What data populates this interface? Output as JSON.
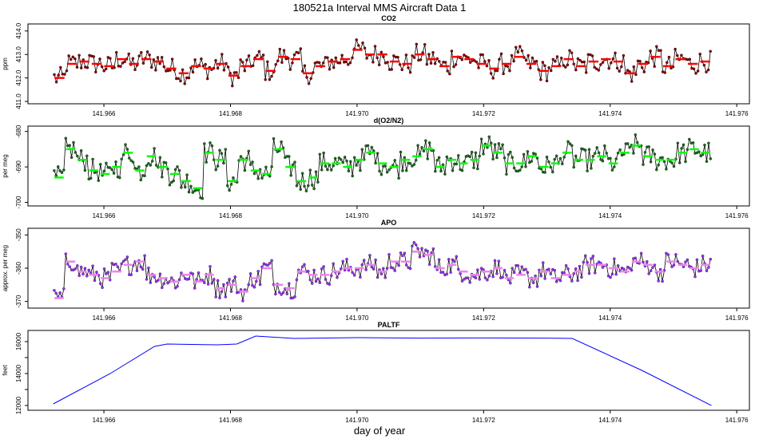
{
  "figure": {
    "title": "180521a   Interval MMS Aircraft Data 1",
    "xlabel": "day of year"
  },
  "colors": {
    "frame": "#000000",
    "raw_line": "#000000",
    "co2_point": "#8b0000",
    "co2_mean": "#ff0000",
    "o2_point": "#1a6e1a",
    "o2_mean": "#00ff00",
    "apo_point": "#9b30ff",
    "apo_mean": "#ee82ee",
    "paltf_line": "#0000ff"
  },
  "chart_data": [
    {
      "type": "line",
      "id": "co2",
      "title": "CO2",
      "ylabel": "ppm",
      "xlim": [
        141.9648,
        141.9762
      ],
      "ylim": [
        410.9,
        414.3
      ],
      "xticks": [
        141.966,
        141.968,
        141.97,
        141.972,
        141.974,
        141.976
      ],
      "xtick_labels": [
        "141.966",
        "141.968",
        "141.970",
        "141.972",
        "141.974",
        "141.976"
      ],
      "yticks": [
        411.0,
        412.0,
        413.0,
        414.0
      ],
      "ytick_labels": [
        "411.0",
        "412.0",
        "413.0",
        "414.0"
      ],
      "x_start": 141.9652,
      "x_end": 141.9756,
      "approx_mean_levels": [
        412.0,
        412.6,
        412.7,
        412.6,
        412.5,
        412.8,
        412.6,
        412.8,
        412.7,
        412.4,
        412.2,
        412.5,
        412.4,
        412.6,
        412.1,
        412.5,
        412.8,
        412.3,
        412.9,
        412.8,
        412.2,
        412.5,
        412.7,
        412.8,
        413.2,
        413.0,
        413.0,
        412.7,
        412.6,
        413.0,
        412.8,
        412.5,
        412.9,
        412.8,
        412.6,
        412.4,
        412.6,
        412.9,
        412.6,
        412.3,
        412.5,
        412.8,
        412.5,
        412.7,
        412.8,
        412.7,
        412.2,
        412.6,
        412.9,
        412.5,
        412.8,
        412.6,
        412.7
      ],
      "series_description": "Noisy CO2 interval measurements with red interval-mean segments"
    },
    {
      "type": "line",
      "id": "o2",
      "title": "d(O2/N2)",
      "ylabel": "per meg",
      "xlim": [
        141.9648,
        141.9762
      ],
      "ylim": [
        -701,
        -678.5
      ],
      "xticks": [
        141.966,
        141.968,
        141.97,
        141.972,
        141.974,
        141.976
      ],
      "xtick_labels": [
        "141.966",
        "141.968",
        "141.970",
        "141.972",
        "141.974",
        "141.976"
      ],
      "yticks": [
        -700,
        -690,
        -680
      ],
      "ytick_labels": [
        "-700",
        "-690",
        "-680"
      ],
      "x_start": 141.9652,
      "x_end": 141.9756,
      "approx_mean_levels": [
        -693,
        -685,
        -688,
        -691,
        -692,
        -690,
        -686,
        -691,
        -687,
        -690,
        -692,
        -694,
        -696,
        -686,
        -688,
        -694,
        -688,
        -691,
        -692,
        -685,
        -690,
        -694,
        -693,
        -689,
        -689,
        -690,
        -688,
        -686,
        -689,
        -690,
        -688,
        -687,
        -685,
        -690,
        -688,
        -689,
        -688,
        -684,
        -686,
        -689,
        -689,
        -687,
        -690,
        -689,
        -686,
        -688,
        -688,
        -687,
        -689,
        -686,
        -684,
        -687,
        -688,
        -688,
        -686,
        -685,
        -686
      ],
      "series_description": "Noisy O2/N2 interval measurements with green interval-mean segments"
    },
    {
      "type": "line",
      "id": "apo",
      "title": "APO",
      "ylabel": "approx. per meg",
      "xlim": [
        141.9648,
        141.9762
      ],
      "ylim": [
        -372,
        -348
      ],
      "xticks": [
        141.966,
        141.968,
        141.97,
        141.972,
        141.974,
        141.976
      ],
      "xtick_labels": [
        "141.966",
        "141.968",
        "141.970",
        "141.972",
        "141.974",
        "141.976"
      ],
      "yticks": [
        -370,
        -360,
        -350
      ],
      "ytick_labels": [
        "-370",
        "-360",
        "-350"
      ],
      "x_start": 141.9652,
      "x_end": 141.9756,
      "approx_mean_levels": [
        -369,
        -358,
        -361,
        -362,
        -363,
        -361,
        -359,
        -358,
        -362,
        -363,
        -364,
        -362,
        -364,
        -362,
        -366,
        -365,
        -367,
        -363,
        -360,
        -365,
        -366,
        -361,
        -362,
        -362,
        -361,
        -360,
        -360,
        -359,
        -361,
        -358,
        -358,
        -355,
        -356,
        -360,
        -359,
        -361,
        -362,
        -361,
        -360,
        -363,
        -362,
        -363,
        -361,
        -363,
        -362,
        -361,
        -359,
        -359,
        -360,
        -361,
        -358,
        -359,
        -361,
        -358,
        -359,
        -360,
        -359
      ],
      "series_description": "Noisy APO interval measurements with violet interval-mean segments"
    },
    {
      "type": "line",
      "id": "paltf",
      "title": "PALTF",
      "ylabel": "feet",
      "xlim": [
        141.9648,
        141.9762
      ],
      "ylim": [
        11700,
        16700
      ],
      "xticks": [
        141.966,
        141.968,
        141.97,
        141.972,
        141.974,
        141.976
      ],
      "xtick_labels": [
        "141.966",
        "141.968",
        "141.970",
        "141.972",
        "141.974",
        "141.976"
      ],
      "yticks": [
        12000,
        13000,
        14000,
        15000,
        16000
      ],
      "ytick_labels": [
        "12000",
        "",
        "14000",
        "",
        "16000"
      ],
      "x": [
        141.9652,
        141.9661,
        141.9668,
        141.967,
        141.9678,
        141.9681,
        141.9684,
        141.969,
        141.97,
        141.971,
        141.972,
        141.973,
        141.9734,
        141.9745,
        141.9756
      ],
      "y": [
        12100,
        14000,
        15700,
        15850,
        15800,
        15850,
        16350,
        16200,
        16250,
        16220,
        16230,
        16220,
        16200,
        14200,
        12000
      ]
    }
  ]
}
